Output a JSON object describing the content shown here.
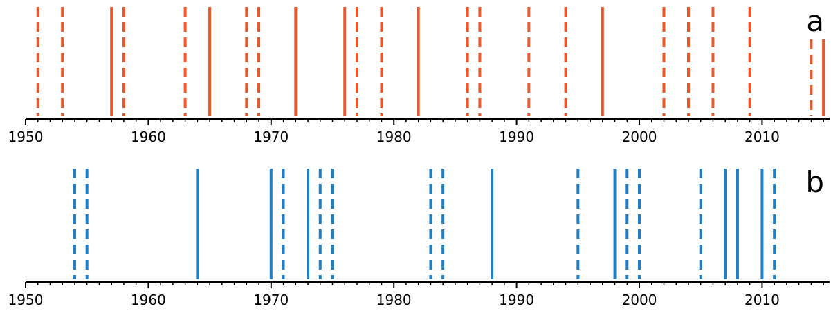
{
  "chart_data": [
    {
      "type": "event-timeline",
      "panel_label": "a",
      "color": "#E8582A",
      "xlim": [
        1950,
        2015.5
      ],
      "major_ticks": [
        1950,
        1960,
        1970,
        1980,
        1990,
        2000,
        2010
      ],
      "tick_labels": [
        "1950",
        "1960",
        "1970",
        "1980",
        "1990",
        "2000",
        "2010"
      ],
      "minor_tick_step": 1,
      "events": [
        {
          "year": 1951,
          "style": "dashed",
          "extent": "full"
        },
        {
          "year": 1953,
          "style": "dashed",
          "extent": "full"
        },
        {
          "year": 1957,
          "style": "solid",
          "extent": "full"
        },
        {
          "year": 1958,
          "style": "dashed",
          "extent": "full"
        },
        {
          "year": 1963,
          "style": "dashed",
          "extent": "full"
        },
        {
          "year": 1965,
          "style": "solid",
          "extent": "full"
        },
        {
          "year": 1968,
          "style": "dashed",
          "extent": "full"
        },
        {
          "year": 1969,
          "style": "dashed",
          "extent": "full"
        },
        {
          "year": 1972,
          "style": "solid",
          "extent": "full"
        },
        {
          "year": 1976,
          "style": "solid",
          "extent": "full"
        },
        {
          "year": 1977,
          "style": "dashed",
          "extent": "full"
        },
        {
          "year": 1979,
          "style": "dashed",
          "extent": "full"
        },
        {
          "year": 1982,
          "style": "solid",
          "extent": "full"
        },
        {
          "year": 1986,
          "style": "dashed",
          "extent": "full"
        },
        {
          "year": 1987,
          "style": "dashed",
          "extent": "full"
        },
        {
          "year": 1991,
          "style": "dashed",
          "extent": "full"
        },
        {
          "year": 1994,
          "style": "dashed",
          "extent": "full"
        },
        {
          "year": 1997,
          "style": "solid",
          "extent": "full"
        },
        {
          "year": 2002,
          "style": "dashed",
          "extent": "full"
        },
        {
          "year": 2004,
          "style": "dashed",
          "extent": "full"
        },
        {
          "year": 2006,
          "style": "dashed",
          "extent": "full"
        },
        {
          "year": 2009,
          "style": "dashed",
          "extent": "full"
        },
        {
          "year": 2014,
          "style": "dashed",
          "extent": "short"
        },
        {
          "year": 2015,
          "style": "solid",
          "extent": "short"
        }
      ]
    },
    {
      "type": "event-timeline",
      "panel_label": "b",
      "color": "#1F7FC4",
      "xlim": [
        1950,
        2015.5
      ],
      "major_ticks": [
        1950,
        1960,
        1970,
        1980,
        1990,
        2000,
        2010
      ],
      "tick_labels": [
        "1950",
        "1960",
        "1970",
        "1980",
        "1990",
        "2000",
        "2010"
      ],
      "minor_tick_step": 1,
      "events": [
        {
          "year": 1954,
          "style": "dashed",
          "extent": "full"
        },
        {
          "year": 1955,
          "style": "dashed",
          "extent": "full"
        },
        {
          "year": 1964,
          "style": "solid",
          "extent": "full"
        },
        {
          "year": 1970,
          "style": "solid",
          "extent": "full"
        },
        {
          "year": 1971,
          "style": "dashed",
          "extent": "full"
        },
        {
          "year": 1973,
          "style": "solid",
          "extent": "full"
        },
        {
          "year": 1974,
          "style": "dashed",
          "extent": "full"
        },
        {
          "year": 1975,
          "style": "dashed",
          "extent": "full"
        },
        {
          "year": 1983,
          "style": "dashed",
          "extent": "full"
        },
        {
          "year": 1984,
          "style": "dashed",
          "extent": "full"
        },
        {
          "year": 1988,
          "style": "solid",
          "extent": "full"
        },
        {
          "year": 1995,
          "style": "dashed",
          "extent": "full"
        },
        {
          "year": 1998,
          "style": "solid",
          "extent": "full"
        },
        {
          "year": 1999,
          "style": "dashed",
          "extent": "full"
        },
        {
          "year": 2000,
          "style": "dashed",
          "extent": "full"
        },
        {
          "year": 2005,
          "style": "dashed",
          "extent": "full"
        },
        {
          "year": 2007,
          "style": "solid",
          "extent": "full"
        },
        {
          "year": 2008,
          "style": "solid",
          "extent": "full"
        },
        {
          "year": 2010,
          "style": "solid",
          "extent": "full"
        },
        {
          "year": 2011,
          "style": "dashed",
          "extent": "full"
        }
      ]
    }
  ]
}
